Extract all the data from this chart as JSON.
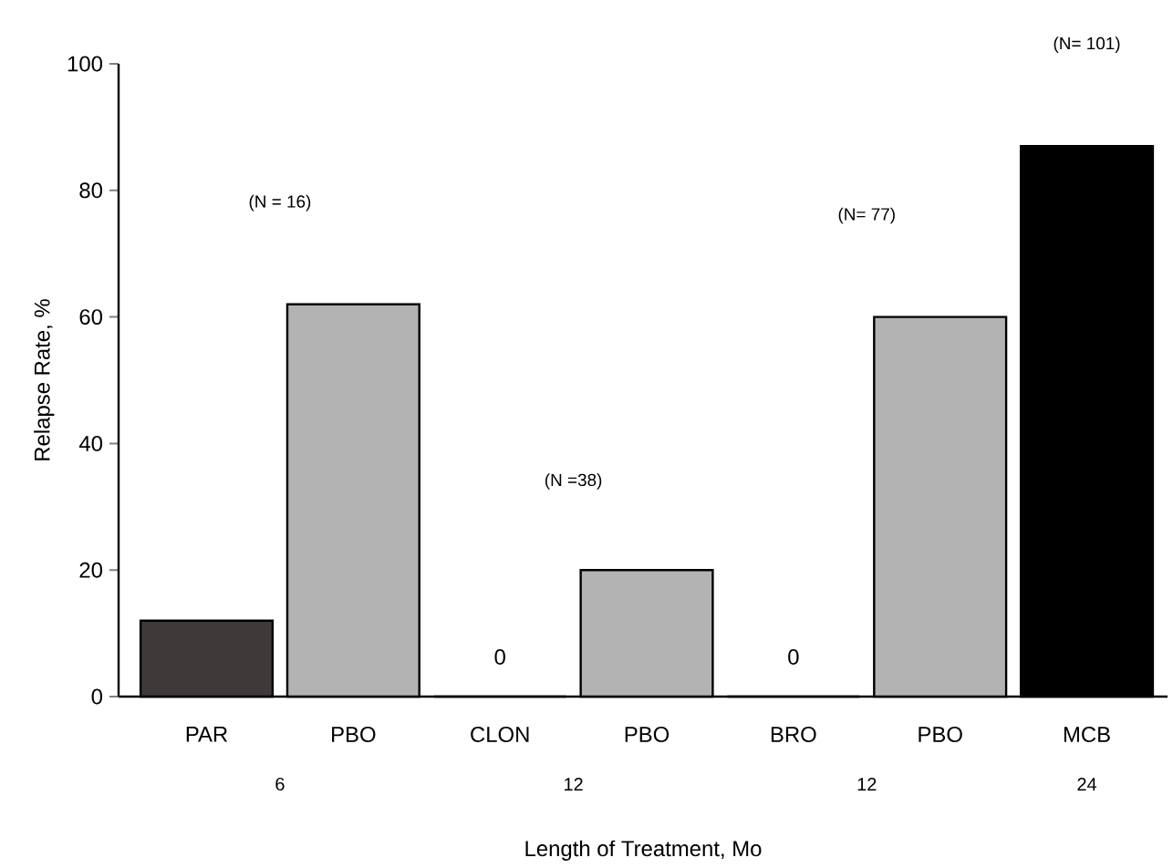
{
  "chart_data": {
    "type": "bar",
    "xlabel": "Length of Treatment, Mo",
    "ylabel": "Relapse Rate, %",
    "categories": [
      "PAR",
      "PBO",
      "CLON",
      "PBO",
      "BRO",
      "PBO",
      "MCB"
    ],
    "values": [
      12,
      62,
      0,
      20,
      0,
      60,
      87
    ],
    "colors": [
      "#3d3a39",
      "#b3b3b3",
      "#b3b3b3",
      "#b3b3b3",
      "#b3b3b3",
      "#b3b3b3",
      "#000000"
    ],
    "value_labels": [
      null,
      null,
      "0",
      null,
      "0",
      null,
      null
    ],
    "ylim": [
      0,
      100
    ],
    "yticks": [
      0,
      20,
      40,
      60,
      80,
      100
    ],
    "annotations": [
      "(N = 16)",
      "(N =38)",
      "(N= 77)",
      "(N= 101)",
      "6",
      "12",
      "12",
      "24"
    ]
  }
}
